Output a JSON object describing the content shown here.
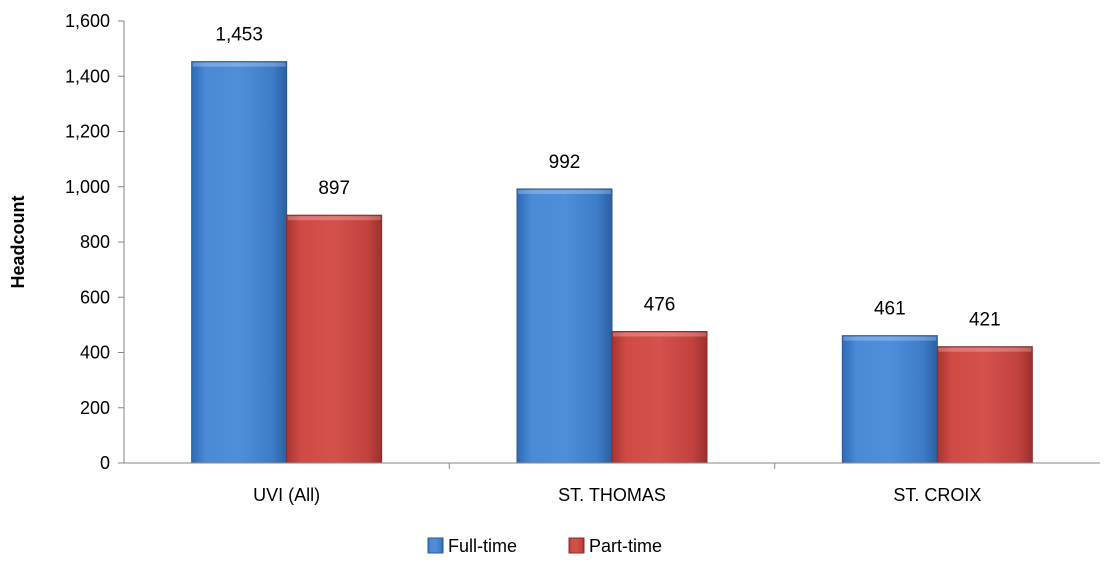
{
  "chart_data": {
    "type": "bar",
    "categories": [
      "UVI (All)",
      "ST. THOMAS",
      "ST. CROIX"
    ],
    "series": [
      {
        "name": "Full-time",
        "values": [
          1453,
          992,
          461
        ],
        "data_labels": [
          "1,453",
          "992",
          "461"
        ],
        "color": "#4a86c8"
      },
      {
        "name": "Part-time",
        "values": [
          897,
          476,
          421
        ],
        "data_labels": [
          "897",
          "476",
          "421"
        ],
        "color": "#c0504d"
      }
    ],
    "title": "",
    "xlabel": "",
    "ylabel": "Headcount",
    "ylim": [
      0,
      1600
    ],
    "yticks": [
      0,
      200,
      400,
      600,
      800,
      1000,
      1200,
      1400,
      1600
    ],
    "ytick_labels": [
      "0",
      "200",
      "400",
      "600",
      "800",
      "1,000",
      "1,200",
      "1,400",
      "1,600"
    ],
    "grid": false,
    "legend_position": "bottom-center"
  }
}
